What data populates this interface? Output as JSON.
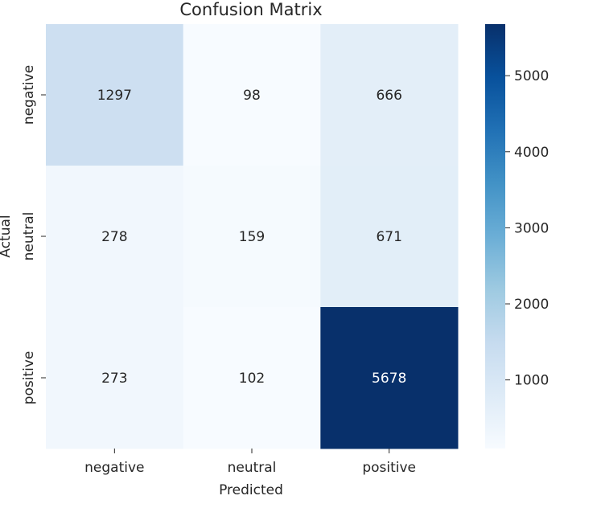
{
  "chart_data": {
    "type": "heatmap",
    "title": "Confusion Matrix",
    "xlabel": "Predicted",
    "ylabel": "Actual",
    "x_categories": [
      "negative",
      "neutral",
      "positive"
    ],
    "y_categories": [
      "negative",
      "neutral",
      "positive"
    ],
    "values": [
      [
        1297,
        98,
        666
      ],
      [
        278,
        159,
        671
      ],
      [
        273,
        102,
        5678
      ]
    ],
    "colormap": "Blues",
    "value_range": [
      98,
      5678
    ],
    "colorbar_ticks": [
      1000,
      2000,
      3000,
      4000,
      5000
    ],
    "colorbar_tick_labels": [
      "1000",
      "2000",
      "3000",
      "4000",
      "5000"
    ],
    "colors": {
      "low": "#f7fbff",
      "high": "#08306b",
      "dark_text": "#262626",
      "light_text": "#ffffff"
    }
  }
}
